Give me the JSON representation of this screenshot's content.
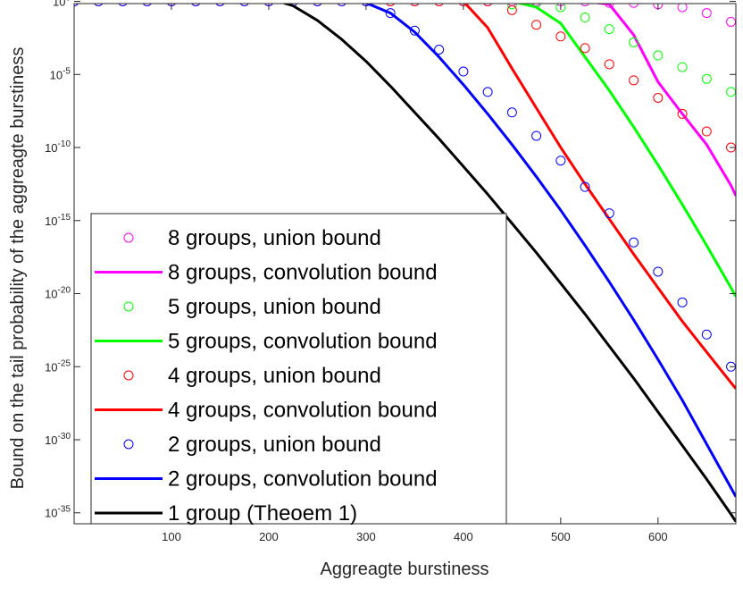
{
  "chart_data": {
    "type": "line",
    "xlabel": "Aggreagte burstiness",
    "ylabel": "Bound on the tail probability of the aggreagte burstiness",
    "xlim": [
      0,
      680
    ],
    "ylim_log10": [
      -36,
      0
    ],
    "yscale": "log",
    "grid": false,
    "legend_position": "bottom-left",
    "x_ticks": [
      100,
      200,
      300,
      400,
      500,
      600
    ],
    "y_ticks": [
      {
        "base": "10",
        "exp": "0",
        "value": 1
      },
      {
        "base": "10",
        "exp": "-5",
        "value": 1e-05
      },
      {
        "base": "10",
        "exp": "-10",
        "value": 1e-10
      },
      {
        "base": "10",
        "exp": "-15",
        "value": 1e-15
      },
      {
        "base": "10",
        "exp": "-20",
        "value": 1e-20
      },
      {
        "base": "10",
        "exp": "-25",
        "value": 1e-25
      },
      {
        "base": "10",
        "exp": "-30",
        "value": 1e-30
      },
      {
        "base": "10",
        "exp": "-35",
        "value": 1e-35
      }
    ],
    "series": [
      {
        "name": "8 groups, union bound",
        "style": "markers",
        "color": "#ff00ff",
        "x": [
          0,
          25,
          50,
          75,
          100,
          125,
          150,
          175,
          200,
          225,
          250,
          275,
          300,
          325,
          350,
          375,
          400,
          425,
          450,
          475,
          500,
          525,
          550,
          575,
          600,
          625,
          650,
          675
        ],
        "log10_y": [
          0,
          0,
          0,
          0,
          0,
          0,
          0,
          0,
          0,
          0,
          0,
          0,
          0,
          0,
          0,
          0,
          0,
          0,
          0,
          0,
          0,
          0,
          -0.1,
          -0.1,
          -0.2,
          -0.4,
          -0.8,
          -1.4
        ]
      },
      {
        "name": "8 groups,  convolution bound",
        "style": "line",
        "color": "#ff00ff",
        "x": [
          0,
          25,
          50,
          75,
          100,
          125,
          150,
          175,
          200,
          225,
          250,
          275,
          300,
          325,
          350,
          375,
          400,
          425,
          450,
          475,
          500,
          525,
          550,
          575,
          600,
          625,
          650,
          675,
          680
        ],
        "log10_y": [
          0,
          0,
          0,
          0,
          0,
          0,
          0,
          0,
          0,
          0,
          0,
          0,
          0,
          0,
          0,
          0,
          0,
          0,
          0,
          0,
          0,
          0,
          -0.2,
          -2.3,
          -5.5,
          -7.7,
          -9.8,
          -12.6,
          -13.3
        ]
      },
      {
        "name": "5 groups, union bound",
        "style": "markers",
        "color": "#00ff00",
        "x": [
          450,
          475,
          500,
          525,
          550,
          575,
          600,
          625,
          650,
          675
        ],
        "log10_y": [
          -0.2,
          -0.1,
          -0.4,
          -1.1,
          -1.9,
          -2.8,
          -3.7,
          -4.5,
          -5.3,
          -6.2
        ]
      },
      {
        "name": "5 groups,  convolution bound",
        "style": "line",
        "color": "#00ff00",
        "x": [
          0,
          25,
          50,
          75,
          100,
          125,
          150,
          175,
          200,
          225,
          250,
          275,
          300,
          325,
          350,
          375,
          400,
          425,
          450,
          475,
          500,
          525,
          550,
          575,
          600,
          625,
          650,
          675,
          680
        ],
        "log10_y": [
          0,
          0,
          0,
          0,
          0,
          0,
          0,
          0,
          0,
          0,
          0,
          0,
          0,
          0,
          0,
          0,
          0,
          0,
          0,
          -0.4,
          -1.5,
          -3.8,
          -6.1,
          -8.6,
          -11.2,
          -13.9,
          -16.7,
          -19.6,
          -20.2
        ]
      },
      {
        "name": "4 groups, union bound",
        "style": "markers",
        "color": "#ff0000",
        "x": [
          325,
          350,
          375,
          400,
          425,
          450,
          475,
          500,
          525,
          550,
          575,
          600,
          625,
          650,
          675
        ],
        "log10_y": [
          0,
          0,
          0,
          0,
          0,
          -0.6,
          -1.6,
          -2.4,
          -3.2,
          -4.3,
          -5.4,
          -6.6,
          -7.7,
          -8.9,
          -10.0
        ]
      },
      {
        "name": "4 groups,  convolution bound",
        "style": "line",
        "color": "#ff0000",
        "x": [
          0,
          25,
          50,
          75,
          100,
          125,
          150,
          175,
          200,
          225,
          250,
          275,
          300,
          325,
          350,
          375,
          400,
          425,
          450,
          475,
          500,
          525,
          550,
          575,
          600,
          625,
          650,
          675,
          680
        ],
        "log10_y": [
          0,
          0,
          0,
          0,
          0,
          0,
          0,
          0,
          0,
          0,
          0,
          0,
          0,
          0,
          0,
          0,
          0,
          -1.8,
          -4.6,
          -7.3,
          -10.0,
          -12.5,
          -14.9,
          -17.3,
          -19.6,
          -21.9,
          -24.0,
          -26.1,
          -26.5
        ]
      },
      {
        "name": "2 groups, union bound",
        "style": "markers",
        "color": "#0000ff",
        "x": [
          0,
          25,
          50,
          75,
          100,
          125,
          150,
          175,
          200,
          225,
          250,
          275,
          300,
          325,
          350,
          375,
          400,
          425,
          450,
          475,
          500,
          525,
          550,
          575,
          600,
          625,
          650,
          675
        ],
        "log10_y": [
          0,
          0,
          0,
          0,
          0,
          0,
          0,
          0,
          0,
          0,
          0,
          0,
          0,
          -0.8,
          -2.0,
          -3.3,
          -4.8,
          -6.2,
          -7.6,
          -9.2,
          -10.9,
          -12.7,
          -14.5,
          -16.5,
          -18.5,
          -20.6,
          -22.8,
          -25.0
        ]
      },
      {
        "name": "2 groups,  convolution bound",
        "style": "line",
        "color": "#0000ff",
        "x": [
          0,
          25,
          50,
          75,
          100,
          125,
          150,
          175,
          200,
          225,
          250,
          275,
          300,
          325,
          350,
          375,
          400,
          425,
          450,
          475,
          500,
          525,
          550,
          575,
          600,
          625,
          650,
          675,
          680
        ],
        "log10_y": [
          0,
          0,
          0,
          0,
          0,
          0,
          0,
          0,
          0,
          0,
          0,
          0,
          -0.1,
          -0.8,
          -2.1,
          -3.8,
          -5.7,
          -7.7,
          -9.8,
          -12.0,
          -14.3,
          -16.7,
          -19.2,
          -21.8,
          -24.5,
          -27.3,
          -30.3,
          -33.3,
          -33.9
        ]
      },
      {
        "name": "1 group (Theoem 1)",
        "style": "line",
        "color": "#000000",
        "x": [
          0,
          25,
          50,
          75,
          100,
          125,
          150,
          175,
          200,
          210,
          225,
          250,
          275,
          300,
          325,
          350,
          375,
          400,
          425,
          450,
          475,
          500,
          525,
          550,
          575,
          600,
          625,
          650,
          675,
          680
        ],
        "log10_y": [
          0,
          0,
          0,
          0,
          0,
          0,
          0,
          0,
          0,
          0,
          -0.3,
          -1.3,
          -2.6,
          -4.1,
          -5.8,
          -7.6,
          -9.4,
          -11.3,
          -13.2,
          -15.2,
          -17.2,
          -19.3,
          -21.4,
          -23.6,
          -25.8,
          -28.1,
          -30.4,
          -32.7,
          -35.1,
          -35.6
        ]
      }
    ]
  }
}
